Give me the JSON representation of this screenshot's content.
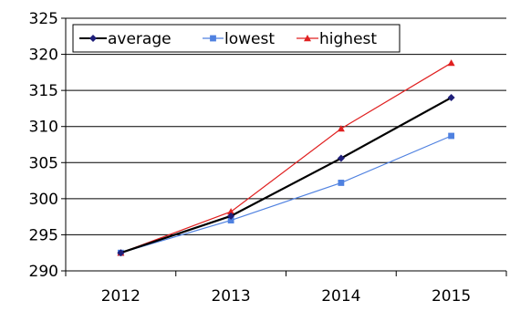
{
  "chart_data": {
    "type": "line",
    "title": "",
    "xlabel": "",
    "ylabel": "",
    "categories": [
      "2012",
      "2013",
      "2014",
      "2015"
    ],
    "ylim": [
      290,
      325
    ],
    "yticks": [
      290,
      295,
      300,
      305,
      310,
      315,
      320,
      325
    ],
    "grid": {
      "horizontal": true,
      "vertical": false
    },
    "legend_position": "top-left",
    "series": [
      {
        "name": "average",
        "values": [
          292.5,
          297.6,
          305.6,
          314.0
        ],
        "color": "#000000",
        "line_color": "#000000",
        "marker_color": "#1f1f7a",
        "marker": "diamond"
      },
      {
        "name": "lowest",
        "values": [
          292.5,
          297.0,
          302.2,
          308.7
        ],
        "color": "#4f81e0",
        "line_color": "#4f81e0",
        "marker_color": "#4f81e0",
        "marker": "square"
      },
      {
        "name": "highest",
        "values": [
          292.5,
          298.2,
          309.7,
          318.8
        ],
        "color": "#e02020",
        "line_color": "#e02020",
        "marker_color": "#e02020",
        "marker": "triangle"
      }
    ]
  }
}
